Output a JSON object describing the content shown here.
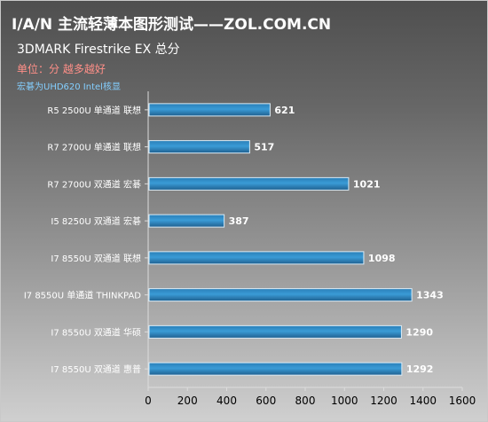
{
  "title": "I/A/N 主流轻薄本图形测试——ZOL.COM.CN",
  "subtitle": "3DMARK  Firestrike EX 总分",
  "unit_note": "单位：分 越多越好",
  "footnote": "宏碁为UHD620 Intel核显",
  "colors": {
    "bar_top": "#2a7fb8",
    "bar_mid": "#3a9bd6",
    "bar_bottom": "#1f5f8f",
    "axis": "#dcdcdc",
    "category_text": "#ffffff",
    "tick_text": "#000000",
    "value_text": "#ffffff"
  },
  "chart_data": {
    "type": "bar",
    "orientation": "horizontal",
    "categories": [
      "R5 2500U 单通道 联想",
      "R7 2700U 单通道 联想",
      "R7 2700U 双通道 宏碁",
      "I5 8250U 双通道 宏碁",
      "I7 8550U 双通道 联想",
      "I7 8550U 单通道 THINKPAD",
      "I7 8550U 双通道 华硕",
      "I7 8550U 双通道 惠普"
    ],
    "values": [
      621,
      517,
      1021,
      387,
      1098,
      1343,
      1290,
      1292
    ],
    "xlim": [
      0,
      1600
    ],
    "xticks": [
      0,
      200,
      400,
      600,
      800,
      1000,
      1200,
      1400,
      1600
    ],
    "grid": false,
    "legend": "none"
  }
}
